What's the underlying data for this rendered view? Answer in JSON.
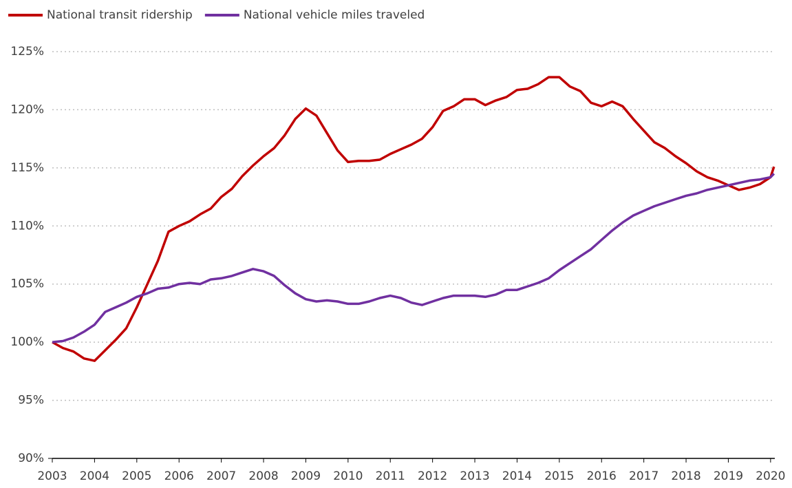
{
  "chart_data": {
    "type": "line",
    "x": [
      2003,
      2003.25,
      2003.5,
      2003.75,
      2004,
      2004.25,
      2004.5,
      2004.75,
      2005,
      2005.25,
      2005.5,
      2005.75,
      2006,
      2006.25,
      2006.5,
      2006.75,
      2007,
      2007.25,
      2007.5,
      2007.75,
      2008,
      2008.25,
      2008.5,
      2008.75,
      2009,
      2009.25,
      2009.5,
      2009.75,
      2010,
      2010.25,
      2010.5,
      2010.75,
      2011,
      2011.25,
      2011.5,
      2011.75,
      2012,
      2012.25,
      2012.5,
      2012.75,
      2013,
      2013.25,
      2013.5,
      2013.75,
      2014,
      2014.25,
      2014.5,
      2014.75,
      2015,
      2015.25,
      2015.5,
      2015.75,
      2016,
      2016.25,
      2016.5,
      2016.75,
      2017,
      2017.25,
      2017.5,
      2017.75,
      2018,
      2018.25,
      2018.5,
      2018.75,
      2019,
      2019.25,
      2019.5,
      2019.75,
      2020,
      2020.08
    ],
    "series": [
      {
        "name": "National transit ridership",
        "color": "#c00000",
        "values": [
          100,
          99.5,
          99.2,
          98.6,
          98.4,
          99.3,
          100.2,
          101.2,
          103.0,
          105.0,
          107.0,
          109.5,
          110.0,
          110.4,
          111.0,
          111.5,
          112.5,
          113.2,
          114.3,
          115.2,
          116.0,
          116.7,
          117.8,
          119.2,
          120.1,
          119.5,
          118.0,
          116.5,
          115.5,
          115.6,
          115.6,
          115.7,
          116.2,
          116.6,
          117.0,
          117.5,
          118.5,
          119.9,
          120.3,
          120.9,
          120.9,
          120.4,
          120.8,
          121.1,
          121.7,
          121.8,
          122.2,
          122.8,
          122.8,
          122.0,
          121.6,
          120.6,
          120.3,
          120.7,
          120.3,
          119.2,
          118.2,
          117.2,
          116.7,
          116.0,
          115.4,
          114.7,
          114.2,
          113.9,
          113.5,
          113.1,
          113.3,
          113.6,
          114.2,
          115.1
        ]
      },
      {
        "name": "National vehicle miles traveled",
        "color": "#7030a0",
        "values": [
          100,
          100.1,
          100.4,
          100.9,
          101.5,
          102.6,
          103.0,
          103.4,
          103.9,
          104.2,
          104.6,
          104.7,
          105.0,
          105.1,
          105.0,
          105.4,
          105.5,
          105.7,
          106.0,
          106.3,
          106.1,
          105.7,
          104.9,
          104.2,
          103.7,
          103.5,
          103.6,
          103.5,
          103.3,
          103.3,
          103.5,
          103.8,
          104.0,
          103.8,
          103.4,
          103.2,
          103.5,
          103.8,
          104.0,
          104.0,
          104.0,
          103.9,
          104.1,
          104.5,
          104.5,
          104.8,
          105.1,
          105.5,
          106.2,
          106.8,
          107.4,
          108.0,
          108.8,
          109.6,
          110.3,
          110.9,
          111.3,
          111.7,
          112.0,
          112.3,
          112.6,
          112.8,
          113.1,
          113.3,
          113.5,
          113.7,
          113.9,
          114.0,
          114.2,
          114.5
        ]
      }
    ],
    "xlim": [
      2003,
      2020.1
    ],
    "xticks": [
      2003,
      2004,
      2005,
      2006,
      2007,
      2008,
      2009,
      2010,
      2011,
      2012,
      2013,
      2014,
      2015,
      2016,
      2017,
      2018,
      2019,
      2020
    ],
    "ylim": [
      90,
      125
    ],
    "yticks": [
      {
        "value": 90,
        "label": "90%"
      },
      {
        "value": 95,
        "label": "95%"
      },
      {
        "value": 100,
        "label": "100%"
      },
      {
        "value": 105,
        "label": "105%"
      },
      {
        "value": 110,
        "label": "110%"
      },
      {
        "value": 115,
        "label": "115%"
      },
      {
        "value": 120,
        "label": "120%"
      },
      {
        "value": 125,
        "label": "125%"
      }
    ],
    "grid": true,
    "legend": "top"
  }
}
